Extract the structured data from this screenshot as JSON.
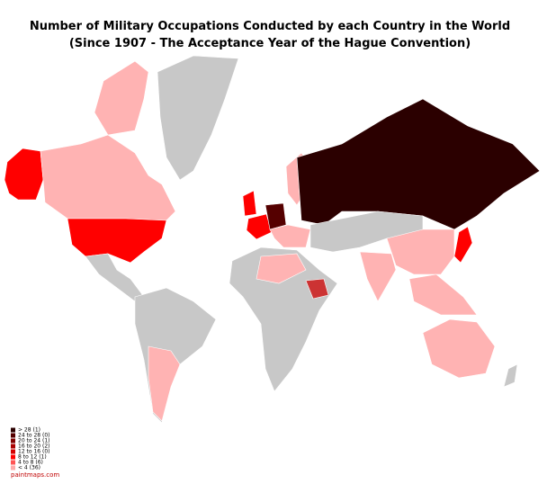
{
  "title": {
    "line1": "Number of Military Occupations Conducted by each Country in the World",
    "line2": "(Since 1907 - The Acceptance Year of the Hague Convention)"
  },
  "legend": [
    {
      "label": "> 28  (1)",
      "color": "#2b0000"
    },
    {
      "label": "24 to 28 (0)",
      "color": "#550000"
    },
    {
      "label": "20 to 24 (1)",
      "color": "#800000"
    },
    {
      "label": "16 to 20 (2)",
      "color": "#aa0000"
    },
    {
      "label": "12 to 16 (0)",
      "color": "#d40000"
    },
    {
      "label": "8 to 12 (1)",
      "color": "#ff0000"
    },
    {
      "label": "4 to 8 (6)",
      "color": "#ff5555"
    },
    {
      "label": "< 4 (36)",
      "color": "#ffaaaa"
    }
  ],
  "source": "paintmaps.com"
}
